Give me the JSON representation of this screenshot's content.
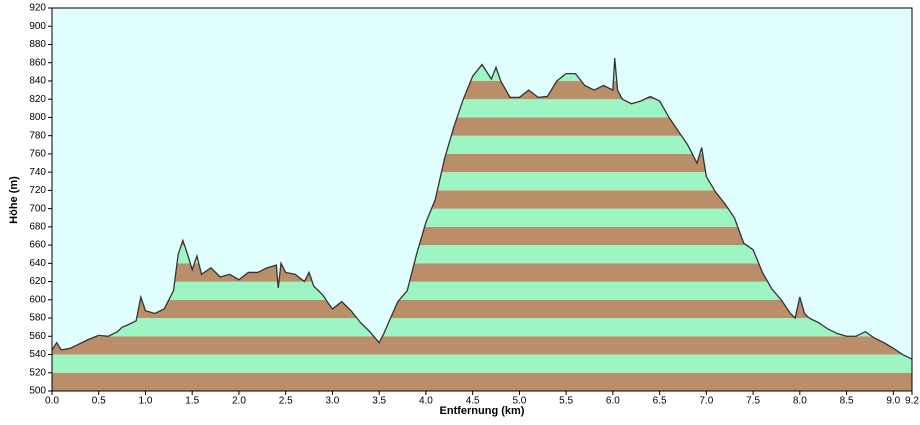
{
  "chart_data": {
    "type": "area",
    "xlabel": "Entfernung  (km)",
    "ylabel": "Höhe (m)",
    "x": [
      0.0,
      0.05,
      0.1,
      0.2,
      0.3,
      0.4,
      0.5,
      0.6,
      0.7,
      0.75,
      0.8,
      0.9,
      0.95,
      1.0,
      1.1,
      1.2,
      1.3,
      1.35,
      1.4,
      1.45,
      1.5,
      1.55,
      1.6,
      1.7,
      1.8,
      1.9,
      2.0,
      2.1,
      2.2,
      2.3,
      2.4,
      2.42,
      2.45,
      2.5,
      2.6,
      2.7,
      2.75,
      2.8,
      2.9,
      2.95,
      3.0,
      3.1,
      3.2,
      3.3,
      3.4,
      3.5,
      3.55,
      3.6,
      3.7,
      3.8,
      3.9,
      4.0,
      4.1,
      4.2,
      4.3,
      4.4,
      4.5,
      4.6,
      4.7,
      4.75,
      4.8,
      4.9,
      5.0,
      5.1,
      5.2,
      5.3,
      5.4,
      5.5,
      5.6,
      5.7,
      5.8,
      5.9,
      6.0,
      6.02,
      6.05,
      6.1,
      6.2,
      6.3,
      6.4,
      6.5,
      6.6,
      6.7,
      6.8,
      6.9,
      6.95,
      7.0,
      7.1,
      7.2,
      7.3,
      7.4,
      7.5,
      7.6,
      7.7,
      7.8,
      7.9,
      7.95,
      8.0,
      8.05,
      8.1,
      8.2,
      8.3,
      8.4,
      8.5,
      8.6,
      8.7,
      8.8,
      8.9,
      9.0,
      9.1,
      9.2
    ],
    "values": [
      545,
      553,
      545,
      547,
      552,
      557,
      561,
      560,
      565,
      570,
      572,
      577,
      603,
      588,
      585,
      590,
      610,
      650,
      665,
      650,
      633,
      648,
      628,
      635,
      625,
      628,
      622,
      630,
      630,
      635,
      638,
      613,
      640,
      630,
      628,
      620,
      630,
      615,
      605,
      597,
      590,
      598,
      588,
      575,
      565,
      553,
      563,
      575,
      598,
      610,
      650,
      685,
      710,
      755,
      790,
      820,
      845,
      858,
      842,
      855,
      840,
      822,
      822,
      830,
      822,
      823,
      840,
      848,
      848,
      835,
      830,
      835,
      830,
      865,
      830,
      820,
      815,
      818,
      823,
      818,
      800,
      785,
      770,
      750,
      767,
      735,
      718,
      705,
      690,
      662,
      655,
      630,
      612,
      600,
      585,
      580,
      603,
      585,
      580,
      575,
      568,
      563,
      560,
      560,
      565,
      558,
      553,
      547,
      540,
      535
    ],
    "line_color": "#333333",
    "stripe_colors": [
      "#b98e68",
      "#9ef5c4"
    ],
    "background": "#e0fefe",
    "xlim": [
      0,
      9.2
    ],
    "ylim": [
      500,
      920
    ],
    "xticks": [
      {
        "value": 0,
        "label": "0.0"
      },
      0.5,
      {
        "value": 1,
        "label": "1.0"
      },
      1.5,
      {
        "value": 2,
        "label": "2.0"
      },
      2.5,
      {
        "value": 3,
        "label": "3.0"
      },
      3.5,
      {
        "value": 4,
        "label": "4.0"
      },
      4.5,
      {
        "value": 5,
        "label": "5.0"
      },
      5.5,
      {
        "value": 6,
        "label": "6.0"
      },
      6.5,
      {
        "value": 7,
        "label": "7.0"
      },
      7.5,
      {
        "value": 8,
        "label": "8.0"
      },
      8.5,
      {
        "value": 9,
        "label": "9.0"
      },
      9.2
    ],
    "yticks": [
      500,
      520,
      540,
      560,
      580,
      600,
      620,
      640,
      660,
      680,
      700,
      720,
      740,
      760,
      780,
      800,
      820,
      840,
      860,
      880,
      900,
      920
    ]
  }
}
